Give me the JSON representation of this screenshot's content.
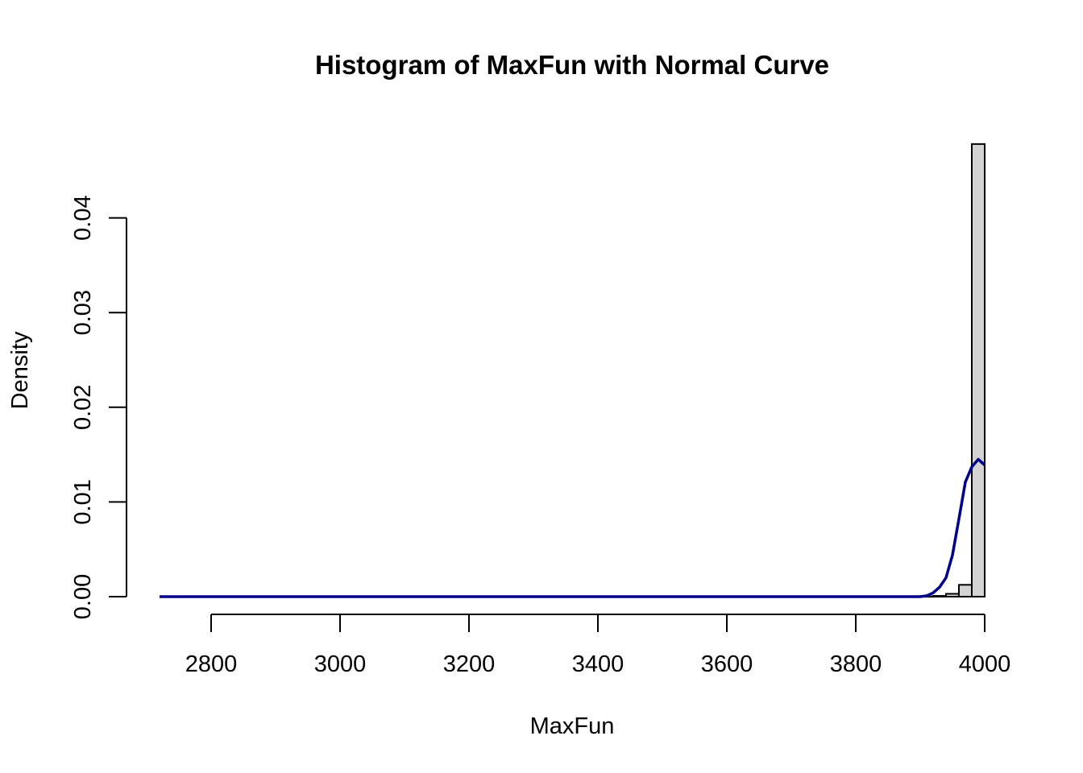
{
  "chart_data": {
    "type": "histogram",
    "title": "Histogram of MaxFun with Normal Curve",
    "xlabel": "MaxFun",
    "ylabel": "Density",
    "xlim": [
      2720,
      4000
    ],
    "ylim": [
      0,
      0.04
    ],
    "x_ticks": [
      2800,
      3000,
      3200,
      3400,
      3600,
      3800,
      4000
    ],
    "x_tick_labels": [
      "2800",
      "3000",
      "3200",
      "3400",
      "3600",
      "3800",
      "4000"
    ],
    "y_ticks": [
      0,
      0.01,
      0.02,
      0.03,
      0.04
    ],
    "y_tick_labels": [
      "0.00",
      "0.01",
      "0.02",
      "0.03",
      "0.04"
    ],
    "grid": false,
    "bar_fill": "#d3d3d3",
    "bar_border": "#000000",
    "bins": [
      {
        "x0": 3900,
        "x1": 3920,
        "density": 3e-05
      },
      {
        "x0": 3920,
        "x1": 3940,
        "density": 8e-05
      },
      {
        "x0": 3940,
        "x1": 3960,
        "density": 0.0003
      },
      {
        "x0": 3960,
        "x1": 3980,
        "density": 0.00125
      },
      {
        "x0": 3980,
        "x1": 4000,
        "density": 0.0478
      }
    ],
    "curve": {
      "name": "Normal Curve",
      "color": "#00008b",
      "x": [
        2720,
        3900,
        3910,
        3920,
        3930,
        3940,
        3950,
        3960,
        3970,
        3980,
        3990,
        4000
      ],
      "y": [
        0,
        0,
        0.0001,
        0.0004,
        0.001,
        0.002,
        0.0044,
        0.0082,
        0.0121,
        0.0137,
        0.0145,
        0.0139
      ]
    }
  }
}
